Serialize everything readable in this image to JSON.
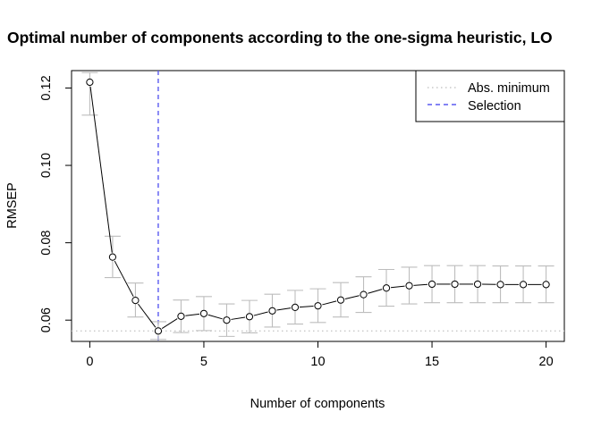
{
  "chart_data": {
    "type": "line",
    "title": "Optimal number of components according to the one-sigma heuristic, LO",
    "xlabel": "Number of components",
    "ylabel": "RMSEP",
    "xlim": [
      -0.8,
      20.8
    ],
    "ylim": [
      0.0545,
      0.1245
    ],
    "xticks": [
      0,
      5,
      10,
      15,
      20
    ],
    "yticks": [
      0.06,
      0.08,
      0.1,
      0.12
    ],
    "xtick_labels": [
      "0",
      "5",
      "10",
      "15",
      "20"
    ],
    "ytick_labels": [
      "0.06",
      "0.08",
      "0.10",
      "0.12"
    ],
    "x": [
      0,
      1,
      2,
      3,
      4,
      5,
      6,
      7,
      8,
      9,
      10,
      11,
      12,
      13,
      14,
      15,
      16,
      17,
      18,
      19,
      20
    ],
    "y": [
      0.1215,
      0.0763,
      0.0651,
      0.0572,
      0.061,
      0.0617,
      0.06,
      0.0609,
      0.0624,
      0.0633,
      0.0637,
      0.0652,
      0.0666,
      0.0683,
      0.0689,
      0.0693,
      0.0693,
      0.0693,
      0.0692,
      0.0692,
      0.0692
    ],
    "error_lower": [
      0.113,
      0.071,
      0.0608,
      0.055,
      0.0568,
      0.0573,
      0.0558,
      0.0567,
      0.0582,
      0.059,
      0.0594,
      0.0608,
      0.062,
      0.0636,
      0.0642,
      0.0645,
      0.0645,
      0.0645,
      0.0645,
      0.0645,
      0.0645
    ],
    "error_upper": [
      0.124,
      0.0817,
      0.0696,
      0.0596,
      0.0652,
      0.0661,
      0.0642,
      0.0651,
      0.0667,
      0.0677,
      0.0681,
      0.0697,
      0.0712,
      0.0731,
      0.0737,
      0.0741,
      0.0741,
      0.0741,
      0.074,
      0.074,
      0.074
    ],
    "abs_minimum": 0.0572,
    "selection": 3,
    "grid": false,
    "legend_position": "top-right",
    "legend": [
      {
        "label": "Abs. minimum",
        "style": "dotted",
        "color": "#c8c8c8"
      },
      {
        "label": "Selection",
        "style": "dashed",
        "color": "#5a5af0"
      }
    ],
    "colors": {
      "line": "#000000",
      "points": "#000000",
      "error_bars": "#bdbdbd",
      "abs_minimum": "#c8c8c8",
      "selection": "#5a5af0"
    }
  }
}
